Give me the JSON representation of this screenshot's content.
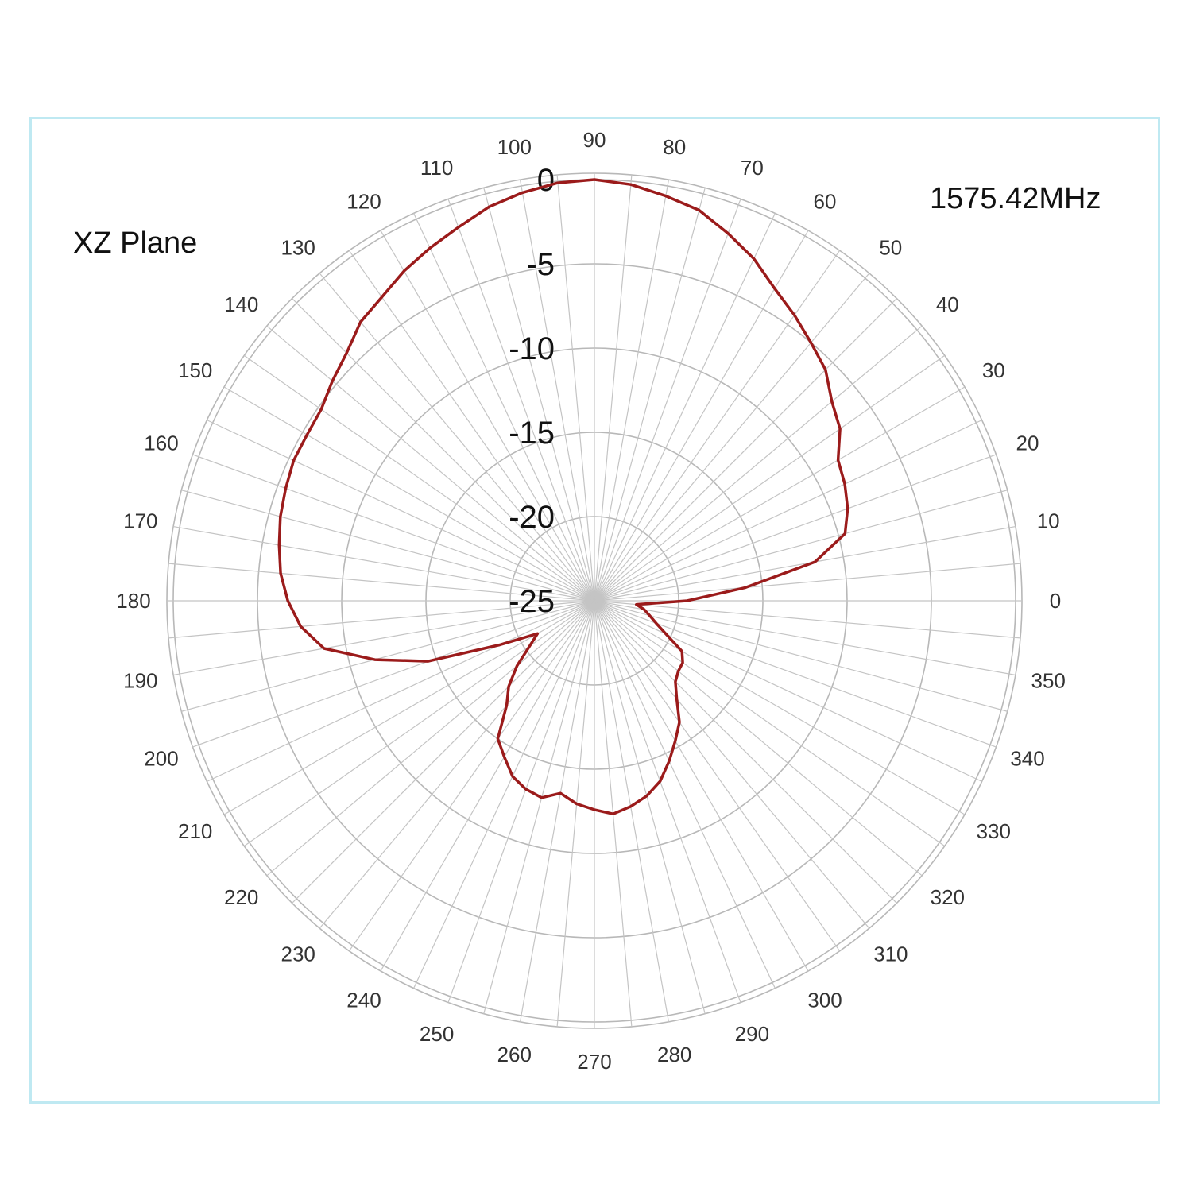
{
  "chart_data": {
    "type": "polar-line",
    "title": "XZ Plane",
    "subtitle": "1575.42MHz",
    "angle_unit": "deg",
    "angle_ticks": [
      0,
      10,
      20,
      30,
      40,
      50,
      60,
      70,
      80,
      90,
      100,
      110,
      120,
      130,
      140,
      150,
      160,
      170,
      180,
      190,
      200,
      210,
      220,
      230,
      240,
      250,
      260,
      270,
      280,
      290,
      300,
      310,
      320,
      330,
      340,
      350
    ],
    "radial_ticks": [
      0,
      -5,
      -10,
      -15,
      -20,
      -25
    ],
    "rlim": [
      -25,
      0
    ],
    "grid": true,
    "series": [
      {
        "color": "#9b1b1b",
        "theta": [
          0,
          5,
          10,
          15,
          20,
          25,
          30,
          35,
          40,
          45,
          50,
          55,
          60,
          65,
          70,
          75,
          80,
          85,
          90,
          95,
          100,
          105,
          110,
          115,
          120,
          125,
          130,
          135,
          140,
          145,
          150,
          155,
          160,
          165,
          170,
          175,
          180,
          185,
          190,
          195,
          200,
          205,
          210,
          215,
          220,
          225,
          230,
          235,
          240,
          245,
          250,
          255,
          260,
          265,
          270,
          275,
          280,
          285,
          290,
          295,
          300,
          305,
          310,
          315,
          320,
          325,
          330,
          335,
          340,
          345,
          350,
          355
        ],
        "r": [
          -19.5,
          -16,
          -11.7,
          -9.6,
          -9.0,
          -8.6,
          -8.3,
          -7.2,
          -6.6,
          -5.6,
          -5.0,
          -4.3,
          -3.6,
          -2.6,
          -1.8,
          -1.0,
          -0.6,
          -0.2,
          0.0,
          -0.1,
          -0.4,
          -0.8,
          -1.4,
          -1.9,
          -2.4,
          -3.0,
          -3.4,
          -4.2,
          -4.7,
          -5.2,
          -5.3,
          -5.3,
          -5.5,
          -5.7,
          -6.0,
          -6.3,
          -6.8,
          -7.5,
          -8.7,
          -11.5,
          -14.5,
          -18.8,
          -21.1,
          -20.3,
          -19.0,
          -17.8,
          -16.9,
          -15.0,
          -14.3,
          -13.5,
          -13.1,
          -12.9,
          -13.4,
          -12.9,
          -12.6,
          -12.3,
          -12.6,
          -13.0,
          -13.6,
          -14.5,
          -15.4,
          -16.2,
          -17.4,
          -18.2,
          -18.5,
          -18.6,
          -19.0,
          -20.3,
          -21.1,
          -21.6,
          -22.0,
          -22.5
        ]
      }
    ]
  }
}
